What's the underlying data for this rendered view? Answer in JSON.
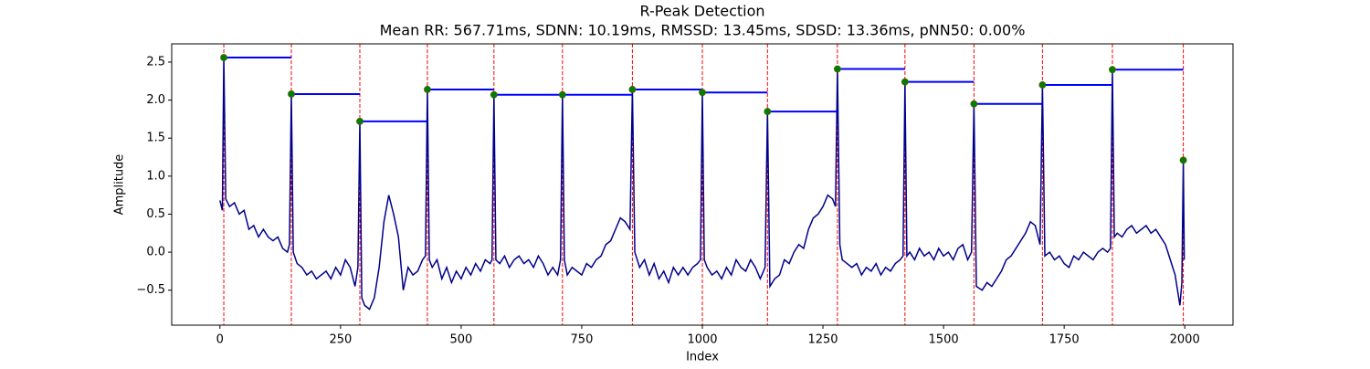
{
  "chart_data": {
    "type": "line",
    "title": "R-Peak Detection",
    "subtitle": "Mean RR: 567.71ms, SDNN: 10.19ms, RMSSD: 13.45ms, SDSD: 13.36ms, pNN50: 0.00%",
    "x_label": "Index",
    "y_label": "Amplitude",
    "color": "#00008b",
    "peak_color": "#008000",
    "peak_line_color": "#ff0000",
    "rr_line_color": "#0000ff",
    "x": [
      0,
      5,
      8,
      12,
      20,
      30,
      40,
      50,
      60,
      70,
      80,
      90,
      100,
      110,
      120,
      130,
      140,
      144,
      148,
      152,
      160,
      170,
      180,
      190,
      200,
      210,
      220,
      230,
      240,
      250,
      260,
      270,
      280,
      286,
      290,
      294,
      300,
      310,
      320,
      330,
      340,
      350,
      360,
      370,
      380,
      390,
      400,
      410,
      420,
      426,
      430,
      434,
      440,
      450,
      460,
      470,
      480,
      490,
      500,
      510,
      520,
      530,
      540,
      550,
      560,
      564,
      568,
      572,
      580,
      590,
      600,
      610,
      620,
      630,
      640,
      650,
      660,
      670,
      680,
      690,
      700,
      706,
      710,
      714,
      720,
      730,
      740,
      750,
      760,
      770,
      780,
      790,
      800,
      810,
      820,
      830,
      840,
      850,
      855,
      860,
      870,
      880,
      890,
      900,
      910,
      920,
      930,
      940,
      950,
      960,
      970,
      980,
      990,
      996,
      1000,
      1004,
      1010,
      1020,
      1030,
      1040,
      1050,
      1060,
      1070,
      1080,
      1090,
      1100,
      1110,
      1120,
      1130,
      1135,
      1140,
      1150,
      1160,
      1170,
      1180,
      1190,
      1200,
      1210,
      1220,
      1230,
      1240,
      1250,
      1260,
      1270,
      1276,
      1280,
      1285,
      1290,
      1300,
      1310,
      1320,
      1330,
      1340,
      1350,
      1360,
      1370,
      1380,
      1390,
      1400,
      1410,
      1416,
      1420,
      1424,
      1430,
      1440,
      1450,
      1460,
      1470,
      1480,
      1490,
      1500,
      1510,
      1520,
      1530,
      1540,
      1550,
      1558,
      1563,
      1568,
      1580,
      1590,
      1600,
      1610,
      1620,
      1630,
      1640,
      1650,
      1660,
      1670,
      1680,
      1690,
      1700,
      1705,
      1710,
      1720,
      1730,
      1740,
      1750,
      1760,
      1770,
      1780,
      1790,
      1800,
      1810,
      1820,
      1830,
      1840,
      1846,
      1850,
      1854,
      1860,
      1870,
      1880,
      1890,
      1900,
      1910,
      1920,
      1930,
      1940,
      1950,
      1960,
      1970,
      1980,
      1990,
      1994,
      1997,
      1999
    ],
    "values": [
      0.68,
      0.55,
      2.56,
      0.7,
      0.6,
      0.65,
      0.5,
      0.55,
      0.3,
      0.35,
      0.2,
      0.3,
      0.2,
      0.15,
      0.2,
      0.05,
      0.0,
      0.1,
      2.08,
      0.0,
      -0.15,
      -0.2,
      -0.3,
      -0.25,
      -0.35,
      -0.3,
      -0.25,
      -0.35,
      -0.2,
      -0.3,
      -0.1,
      -0.2,
      -0.45,
      -0.2,
      1.72,
      -0.6,
      -0.7,
      -0.75,
      -0.6,
      -0.2,
      0.4,
      0.75,
      0.5,
      0.2,
      -0.5,
      -0.2,
      -0.3,
      -0.25,
      -0.1,
      -0.05,
      2.14,
      -0.1,
      -0.2,
      -0.1,
      -0.35,
      -0.2,
      -0.4,
      -0.25,
      -0.35,
      -0.2,
      -0.3,
      -0.15,
      -0.25,
      -0.1,
      -0.15,
      -0.1,
      2.07,
      -0.1,
      -0.15,
      -0.05,
      -0.2,
      -0.1,
      -0.05,
      -0.15,
      -0.1,
      -0.2,
      -0.05,
      -0.15,
      -0.3,
      -0.2,
      -0.3,
      -0.1,
      2.07,
      -0.1,
      -0.3,
      -0.2,
      -0.25,
      -0.3,
      -0.15,
      -0.2,
      -0.1,
      -0.05,
      0.1,
      0.15,
      0.3,
      0.45,
      0.4,
      0.3,
      2.14,
      0.0,
      -0.2,
      -0.1,
      -0.3,
      -0.15,
      -0.35,
      -0.25,
      -0.4,
      -0.2,
      -0.3,
      -0.2,
      -0.3,
      -0.2,
      -0.15,
      -0.1,
      2.1,
      -0.1,
      -0.2,
      -0.3,
      -0.25,
      -0.35,
      -0.2,
      -0.3,
      -0.1,
      -0.2,
      -0.25,
      -0.1,
      -0.2,
      -0.35,
      -0.2,
      1.85,
      -0.45,
      -0.35,
      -0.3,
      -0.1,
      -0.15,
      0.0,
      0.1,
      0.05,
      0.3,
      0.45,
      0.5,
      0.6,
      0.75,
      0.7,
      0.6,
      2.41,
      0.1,
      -0.1,
      -0.15,
      -0.2,
      -0.15,
      -0.3,
      -0.2,
      -0.25,
      -0.15,
      -0.3,
      -0.2,
      -0.25,
      -0.15,
      -0.1,
      -0.05,
      2.24,
      -0.05,
      0.0,
      -0.1,
      0.05,
      -0.05,
      0.0,
      -0.1,
      0.05,
      -0.05,
      0.0,
      -0.1,
      0.05,
      0.1,
      -0.1,
      0.0,
      1.95,
      -0.45,
      -0.5,
      -0.4,
      -0.45,
      -0.35,
      -0.25,
      -0.1,
      -0.05,
      0.05,
      0.15,
      0.25,
      0.4,
      0.35,
      0.1,
      2.2,
      -0.05,
      0.0,
      -0.1,
      -0.05,
      -0.15,
      -0.2,
      -0.05,
      -0.1,
      0.0,
      -0.05,
      -0.1,
      0.0,
      0.05,
      0.0,
      0.05,
      2.4,
      0.2,
      0.25,
      0.2,
      0.3,
      0.35,
      0.25,
      0.3,
      0.35,
      0.25,
      0.3,
      0.2,
      0.1,
      -0.1,
      -0.3,
      -0.7,
      -0.4,
      1.21,
      -0.1
    ],
    "peaks": {
      "x": [
        8,
        148,
        290,
        430,
        568,
        710,
        855,
        1000,
        1135,
        1280,
        1420,
        1563,
        1705,
        1850,
        1997
      ],
      "values": [
        2.56,
        2.08,
        1.72,
        2.14,
        2.07,
        2.07,
        2.14,
        2.1,
        1.85,
        2.41,
        2.24,
        1.95,
        2.2,
        2.4,
        1.21
      ]
    },
    "xlim": [
      -100,
      2100
    ],
    "xticks": [
      0,
      250,
      500,
      750,
      1000,
      1250,
      1500,
      1750,
      2000
    ],
    "ylim": [
      -0.96,
      2.74
    ],
    "yticks": [
      {
        "value": -0.5,
        "label": "−0.5"
      },
      {
        "value": 0,
        "label": "0.0"
      },
      0.5,
      {
        "value": 1,
        "label": "1.0"
      },
      1.5,
      {
        "value": 2,
        "label": "2.0"
      },
      2.5
    ],
    "grid": false
  }
}
